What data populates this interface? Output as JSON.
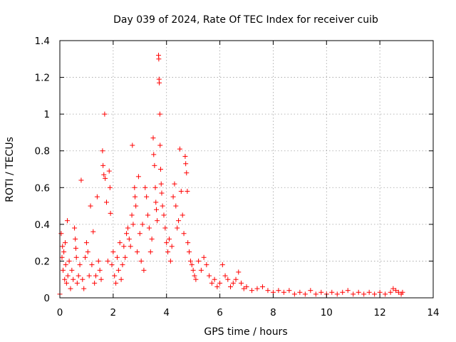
{
  "chart_data": {
    "type": "scatter",
    "title": "Day 039 of 2024, Rate Of TEC Index for receiver cuib",
    "xlabel": "GPS time / hours",
    "ylabel": "ROTI / TECUs",
    "xlim": [
      0,
      14
    ],
    "ylim": [
      0,
      1.4
    ],
    "x_ticks": [
      0,
      2,
      4,
      6,
      8,
      10,
      12,
      14
    ],
    "y_ticks": [
      0,
      0.2,
      0.4,
      0.6,
      0.8,
      1.0,
      1.2,
      1.4
    ],
    "x_tick_labels": [
      "0",
      "2",
      "4",
      "6",
      "8",
      "10",
      "12",
      "14"
    ],
    "y_tick_labels": [
      "0",
      "0.2",
      "0.4",
      "0.6",
      "0.8",
      "1",
      "1.2",
      "1.4"
    ],
    "grid": true,
    "marker": "+",
    "color": "#ff0000",
    "series": [
      {
        "name": "ROTI",
        "points": [
          [
            0.0,
            0.02
          ],
          [
            0.05,
            0.35
          ],
          [
            0.08,
            0.22
          ],
          [
            0.1,
            0.28
          ],
          [
            0.12,
            0.15
          ],
          [
            0.15,
            0.25
          ],
          [
            0.18,
            0.1
          ],
          [
            0.2,
            0.3
          ],
          [
            0.22,
            0.18
          ],
          [
            0.25,
            0.08
          ],
          [
            0.28,
            0.42
          ],
          [
            0.3,
            0.12
          ],
          [
            0.35,
            0.2
          ],
          [
            0.4,
            0.05
          ],
          [
            0.45,
            0.15
          ],
          [
            0.5,
            0.1
          ],
          [
            0.55,
            0.38
          ],
          [
            0.58,
            0.32
          ],
          [
            0.6,
            0.27
          ],
          [
            0.62,
            0.22
          ],
          [
            0.65,
            0.08
          ],
          [
            0.7,
            0.12
          ],
          [
            0.75,
            0.18
          ],
          [
            0.8,
            0.64
          ],
          [
            0.85,
            0.1
          ],
          [
            0.9,
            0.05
          ],
          [
            0.95,
            0.22
          ],
          [
            1.0,
            0.3
          ],
          [
            1.05,
            0.25
          ],
          [
            1.1,
            0.12
          ],
          [
            1.15,
            0.5
          ],
          [
            1.2,
            0.18
          ],
          [
            1.25,
            0.36
          ],
          [
            1.3,
            0.08
          ],
          [
            1.35,
            0.12
          ],
          [
            1.4,
            0.55
          ],
          [
            1.45,
            0.2
          ],
          [
            1.5,
            0.15
          ],
          [
            1.55,
            0.1
          ],
          [
            1.6,
            0.8
          ],
          [
            1.62,
            0.72
          ],
          [
            1.65,
            0.67
          ],
          [
            1.68,
            1.0
          ],
          [
            1.7,
            0.65
          ],
          [
            1.75,
            0.52
          ],
          [
            1.8,
            0.2
          ],
          [
            1.85,
            0.69
          ],
          [
            1.88,
            0.6
          ],
          [
            1.9,
            0.46
          ],
          [
            1.95,
            0.18
          ],
          [
            2.0,
            0.25
          ],
          [
            2.05,
            0.12
          ],
          [
            2.1,
            0.08
          ],
          [
            2.15,
            0.22
          ],
          [
            2.2,
            0.15
          ],
          [
            2.25,
            0.3
          ],
          [
            2.3,
            0.1
          ],
          [
            2.35,
            0.18
          ],
          [
            2.4,
            0.28
          ],
          [
            2.45,
            0.22
          ],
          [
            2.5,
            0.35
          ],
          [
            2.55,
            0.38
          ],
          [
            2.6,
            0.32
          ],
          [
            2.65,
            0.28
          ],
          [
            2.7,
            0.45
          ],
          [
            2.72,
            0.83
          ],
          [
            2.75,
            0.4
          ],
          [
            2.8,
            0.6
          ],
          [
            2.82,
            0.55
          ],
          [
            2.85,
            0.5
          ],
          [
            2.9,
            0.25
          ],
          [
            2.95,
            0.66
          ],
          [
            3.0,
            0.35
          ],
          [
            3.05,
            0.2
          ],
          [
            3.1,
            0.4
          ],
          [
            3.15,
            0.15
          ],
          [
            3.2,
            0.6
          ],
          [
            3.25,
            0.55
          ],
          [
            3.3,
            0.45
          ],
          [
            3.35,
            0.38
          ],
          [
            3.4,
            0.25
          ],
          [
            3.45,
            0.32
          ],
          [
            3.5,
            0.87
          ],
          [
            3.52,
            0.78
          ],
          [
            3.55,
            0.72
          ],
          [
            3.58,
            0.6
          ],
          [
            3.6,
            0.52
          ],
          [
            3.62,
            0.48
          ],
          [
            3.65,
            0.42
          ],
          [
            3.7,
            1.32
          ],
          [
            3.71,
            1.3
          ],
          [
            3.72,
            1.19
          ],
          [
            3.73,
            1.17
          ],
          [
            3.75,
            1.0
          ],
          [
            3.76,
            0.83
          ],
          [
            3.78,
            0.7
          ],
          [
            3.8,
            0.62
          ],
          [
            3.82,
            0.57
          ],
          [
            3.85,
            0.5
          ],
          [
            3.9,
            0.45
          ],
          [
            3.95,
            0.38
          ],
          [
            4.0,
            0.3
          ],
          [
            4.05,
            0.25
          ],
          [
            4.1,
            0.32
          ],
          [
            4.15,
            0.2
          ],
          [
            4.2,
            0.28
          ],
          [
            4.25,
            0.55
          ],
          [
            4.3,
            0.62
          ],
          [
            4.35,
            0.5
          ],
          [
            4.4,
            0.38
          ],
          [
            4.45,
            0.42
          ],
          [
            4.5,
            0.81
          ],
          [
            4.55,
            0.58
          ],
          [
            4.6,
            0.45
          ],
          [
            4.65,
            0.35
          ],
          [
            4.7,
            0.77
          ],
          [
            4.72,
            0.73
          ],
          [
            4.75,
            0.68
          ],
          [
            4.78,
            0.58
          ],
          [
            4.8,
            0.3
          ],
          [
            4.85,
            0.25
          ],
          [
            4.9,
            0.2
          ],
          [
            4.95,
            0.18
          ],
          [
            5.0,
            0.15
          ],
          [
            5.05,
            0.12
          ],
          [
            5.1,
            0.1
          ],
          [
            5.2,
            0.2
          ],
          [
            5.3,
            0.15
          ],
          [
            5.4,
            0.22
          ],
          [
            5.5,
            0.18
          ],
          [
            5.6,
            0.12
          ],
          [
            5.7,
            0.08
          ],
          [
            5.8,
            0.1
          ],
          [
            5.9,
            0.06
          ],
          [
            6.0,
            0.08
          ],
          [
            6.1,
            0.18
          ],
          [
            6.2,
            0.12
          ],
          [
            6.3,
            0.1
          ],
          [
            6.4,
            0.06
          ],
          [
            6.5,
            0.08
          ],
          [
            6.6,
            0.1
          ],
          [
            6.7,
            0.14
          ],
          [
            6.8,
            0.08
          ],
          [
            6.9,
            0.05
          ],
          [
            7.0,
            0.06
          ],
          [
            7.2,
            0.04
          ],
          [
            7.4,
            0.05
          ],
          [
            7.6,
            0.06
          ],
          [
            7.8,
            0.04
          ],
          [
            8.0,
            0.03
          ],
          [
            8.2,
            0.04
          ],
          [
            8.4,
            0.03
          ],
          [
            8.6,
            0.04
          ],
          [
            8.8,
            0.02
          ],
          [
            9.0,
            0.03
          ],
          [
            9.2,
            0.02
          ],
          [
            9.4,
            0.04
          ],
          [
            9.6,
            0.02
          ],
          [
            9.8,
            0.03
          ],
          [
            10.0,
            0.02
          ],
          [
            10.2,
            0.03
          ],
          [
            10.4,
            0.02
          ],
          [
            10.6,
            0.03
          ],
          [
            10.8,
            0.04
          ],
          [
            11.0,
            0.02
          ],
          [
            11.2,
            0.03
          ],
          [
            11.4,
            0.02
          ],
          [
            11.6,
            0.03
          ],
          [
            11.8,
            0.02
          ],
          [
            12.0,
            0.03
          ],
          [
            12.2,
            0.02
          ],
          [
            12.4,
            0.03
          ],
          [
            12.5,
            0.05
          ],
          [
            12.6,
            0.04
          ],
          [
            12.7,
            0.03
          ],
          [
            12.8,
            0.02
          ],
          [
            12.85,
            0.03
          ]
        ]
      }
    ]
  }
}
